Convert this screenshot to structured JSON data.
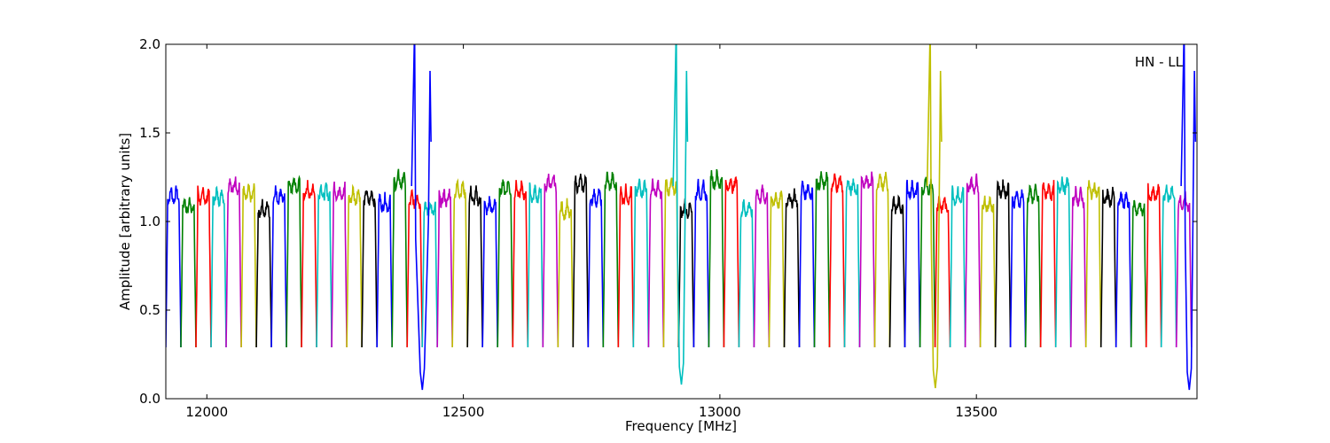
{
  "chart_data": {
    "type": "line",
    "title": "",
    "annotation": "HN - LL",
    "xlabel": "Frequency [MHz]",
    "ylabel": "Amplitude [arbitrary units]",
    "xlim": [
      11920,
      13930
    ],
    "ylim": [
      0.0,
      2.0
    ],
    "xticks": [
      12000,
      12500,
      13000,
      13500
    ],
    "yticks": [
      0.0,
      0.5,
      1.0,
      1.5,
      2.0
    ],
    "xtick_labels": [
      "12000",
      "12500",
      "13000",
      "13500"
    ],
    "ytick_labels": [
      "0.0",
      "0.5",
      "1.0",
      "1.5",
      "2.0"
    ],
    "grid": false,
    "color_cycle": [
      "#0000ff",
      "#008000",
      "#ff0000",
      "#00bfbf",
      "#bf00bf",
      "#bfbf00",
      "#000000"
    ],
    "channel_start_mhz": 11920,
    "channel_width_mhz": 29.4,
    "channel_count": 68,
    "channel_level": 1.18,
    "channel_floor": 0.29,
    "interference_spikes": [
      {
        "x": [
          12405,
          12435
        ],
        "min_y": 0.05,
        "max_y": 2.0
      },
      {
        "x": [
          12915,
          12935
        ],
        "min_y": 0.08,
        "max_y": 2.0
      },
      {
        "x": [
          13410,
          13430
        ],
        "min_y": 0.06,
        "max_y": 2.0
      },
      {
        "x": [
          13905,
          13925
        ],
        "min_y": 0.05,
        "max_y": 2.0
      }
    ]
  }
}
